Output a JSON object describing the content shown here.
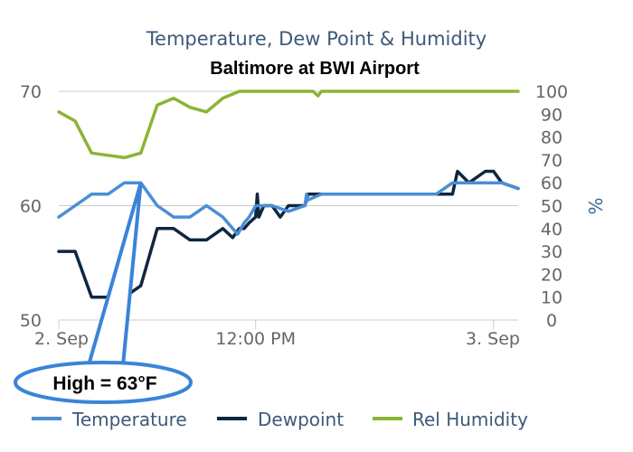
{
  "chart_data": {
    "type": "line",
    "title": "Temperature, Dew Point & Humidity",
    "subtitle": "Baltimore at BWI Airport",
    "x_axis": {
      "unit": "hours since 2. Sep 00:00",
      "range": [
        0,
        28
      ],
      "ticks": [
        {
          "x": 0,
          "label": "2. Sep"
        },
        {
          "x": 12,
          "label": "12:00 PM"
        },
        {
          "x": 26.5,
          "label": "3. Sep"
        }
      ]
    },
    "y_axis_left": {
      "label": "",
      "range": [
        50,
        70
      ],
      "ticks": [
        "50",
        "60",
        "70"
      ]
    },
    "y_axis_right": {
      "label": "%",
      "range": [
        0,
        100
      ],
      "ticks": [
        "0",
        "10",
        "20",
        "30",
        "40",
        "50",
        "60",
        "70",
        "80",
        "90",
        "100"
      ]
    },
    "grid": true,
    "legend_position": "bottom",
    "series": [
      {
        "name": "Temperature",
        "color": "#4a8fd6",
        "axis": "left",
        "x": [
          -0.2,
          1,
          2,
          3,
          4,
          5,
          6,
          7,
          8,
          9,
          10,
          10.9,
          11.1,
          11.3,
          11.6,
          12,
          13,
          14,
          15,
          15.1,
          15.2,
          16,
          17,
          18,
          19,
          20,
          21,
          22,
          23,
          24,
          25,
          26,
          27,
          28
        ],
        "y": [
          59,
          60,
          61,
          61,
          62,
          62,
          60,
          59,
          59,
          60,
          59,
          57.5,
          58,
          58.5,
          59,
          60,
          60,
          59.5,
          60,
          61,
          60.5,
          61,
          61,
          61,
          61,
          61,
          61,
          61,
          61,
          62,
          62,
          62,
          62,
          61.5
        ]
      },
      {
        "name": "Dewpoint",
        "color": "#0f2640",
        "axis": "left",
        "x": [
          -0.2,
          1,
          2,
          3,
          4,
          5,
          6,
          7,
          8,
          9,
          10,
          10.6,
          11,
          11.3,
          11.6,
          12,
          12.1,
          12.2,
          12.5,
          13,
          13.5,
          14,
          14.5,
          15,
          15.2,
          16,
          17,
          18,
          19,
          20,
          21,
          22,
          22.9,
          23.2,
          23.4,
          24,
          24.3,
          25,
          26,
          26.5,
          27,
          28
        ],
        "y": [
          56,
          56,
          52,
          52,
          52,
          53,
          58,
          58,
          57,
          57,
          58,
          57.2,
          58,
          58,
          58.5,
          59,
          61,
          59,
          60,
          60,
          59,
          60,
          60,
          60,
          61,
          61,
          61,
          61,
          61,
          61,
          61,
          61,
          61,
          61,
          61,
          61,
          63,
          62,
          63,
          63,
          62,
          61.5
        ]
      },
      {
        "name": "Rel Humidity",
        "color": "#8ab534",
        "axis": "right",
        "x": [
          -0.2,
          1,
          2,
          3,
          4,
          5,
          6,
          7,
          8,
          9,
          10,
          11,
          12,
          13,
          14,
          15,
          15.5,
          15.8,
          16,
          17,
          18,
          19,
          20,
          21,
          22,
          23,
          24,
          25,
          26,
          27,
          28
        ],
        "y": [
          91,
          87,
          73,
          72,
          71,
          73,
          94,
          97,
          93,
          91,
          97,
          100,
          100,
          100,
          100,
          100,
          100,
          98,
          100,
          100,
          100,
          100,
          100,
          100,
          100,
          100,
          100,
          100,
          100,
          100,
          100
        ]
      }
    ],
    "annotations": [
      {
        "text": "High = 63°F",
        "x": 5,
        "y": 62
      }
    ]
  }
}
